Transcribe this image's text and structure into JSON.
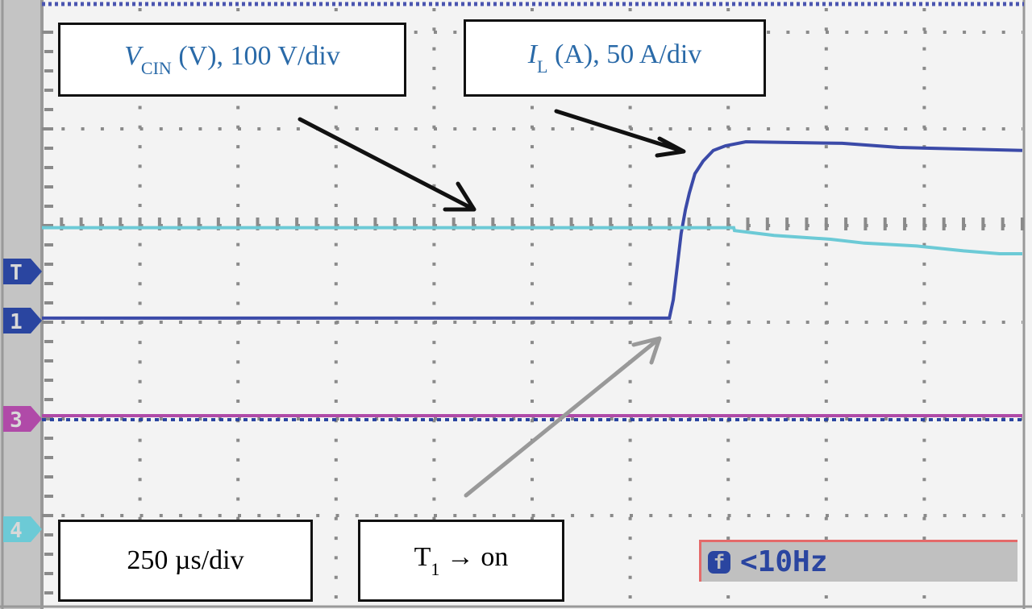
{
  "chart_data": {
    "type": "line",
    "title": "",
    "time_scale": "250 µs/div",
    "x_unit": "µs",
    "xlim": [
      0,
      2500
    ],
    "grid": true,
    "series": [
      {
        "name": "I_L (A), 50 A/div",
        "channel": "1",
        "color": "#3b4aa8",
        "unit": "A",
        "scale_per_div": 50,
        "points": [
          [
            0,
            1.3
          ],
          [
            1600,
            1.3
          ],
          [
            1610,
            10.8
          ],
          [
            1620,
            28
          ],
          [
            1630,
            45
          ],
          [
            1641,
            57.5
          ],
          [
            1651,
            66
          ],
          [
            1665,
            76
          ],
          [
            1686,
            82.5
          ],
          [
            1712,
            88
          ],
          [
            1743,
            90.4
          ],
          [
            1795,
            92.5
          ],
          [
            2041,
            91.7
          ],
          [
            2185,
            89.6
          ],
          [
            2500,
            88
          ]
        ]
      },
      {
        "name": "V_CIN (V), 100 V/div",
        "channel": "4",
        "color": "#6ccad6",
        "unit": "V",
        "scale_per_div": 100,
        "points": [
          [
            0,
            312
          ],
          [
            1764,
            312
          ],
          [
            1766,
            309
          ],
          [
            1867,
            304
          ],
          [
            2011,
            300
          ],
          [
            2097,
            296
          ],
          [
            2231,
            293
          ],
          [
            2350,
            288
          ],
          [
            2442,
            285
          ],
          [
            2500,
            285
          ]
        ]
      },
      {
        "name": "",
        "channel": "3",
        "color": "#b04aa8",
        "unit": "",
        "scale_per_div": 1,
        "points": [
          [
            0,
            0
          ],
          [
            2500,
            0
          ]
        ]
      }
    ]
  },
  "annotations": {
    "vcin_main": "V",
    "vcin_sub": "CIN",
    "vcin_rest": " (V), 100 V/div",
    "il_main": "I",
    "il_sub": "L",
    "il_rest": " (A), 50 A/div",
    "timebase": "250 µs/div",
    "t1_main": "T",
    "t1_sub": "1",
    "t1_rest": " → on"
  },
  "markers": [
    "T",
    "1",
    "3",
    "4"
  ],
  "readout": {
    "icon": "f",
    "value": "<10Hz"
  },
  "colors": {
    "ch1": "#2a45a0",
    "ch3": "#b04aa8",
    "ch4": "#6ccad6",
    "panel": "#c4c4c4"
  }
}
